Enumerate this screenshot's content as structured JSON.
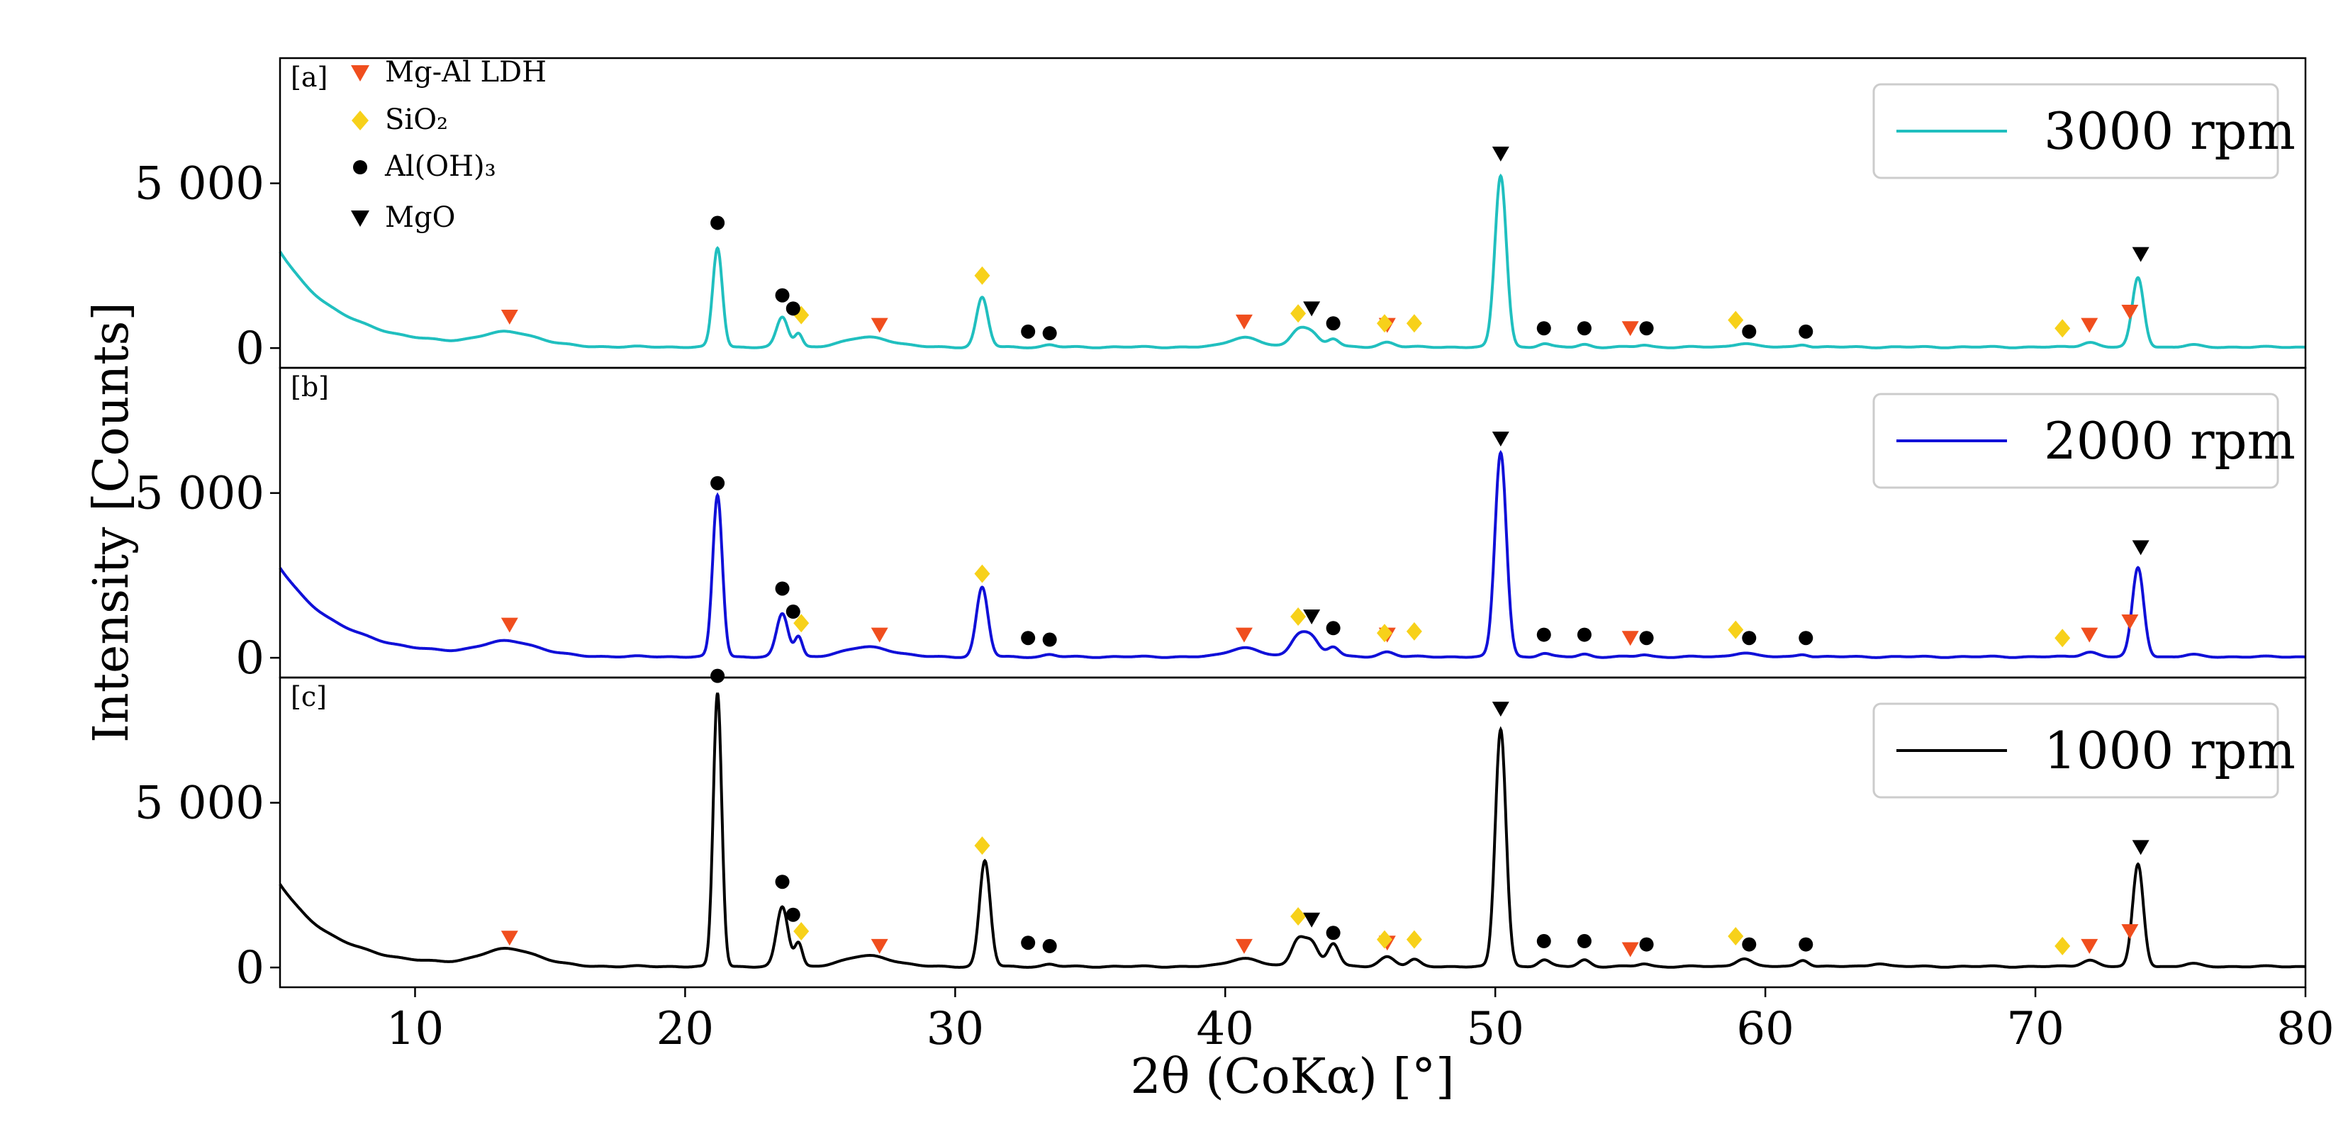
{
  "chart_data": {
    "type": "line",
    "xlabel": "2θ (CoKα) [°]",
    "ylabel": "Intensity [Counts]",
    "xlim": [
      5,
      80
    ],
    "x_ticks": [
      10,
      20,
      30,
      40,
      50,
      60,
      70,
      80
    ],
    "ylim": [
      -600,
      8800
    ],
    "y_ticks": [
      0,
      5000
    ],
    "y_tick_labels": [
      "0",
      "5 000"
    ],
    "marker_legend": [
      {
        "key": "ldh",
        "label": "Mg-Al LDH",
        "shape": "triangle-down",
        "color": "#f04e1e"
      },
      {
        "key": "sio2",
        "label": "SiO₂",
        "shape": "diamond",
        "color": "#f7d11a"
      },
      {
        "key": "aloh3",
        "label": "Al(OH)₃",
        "shape": "circle",
        "color": "#000000"
      },
      {
        "key": "mgo",
        "label": "MgO",
        "shape": "triangle-down",
        "color": "#000000"
      }
    ],
    "panels": [
      {
        "tag": "[a]",
        "legend": "3000 rpm",
        "color": "#20bfbf",
        "peaks": [
          [
            13.5,
            400,
            1.5
          ],
          [
            21.2,
            3000,
            0.25
          ],
          [
            23.6,
            900,
            0.3
          ],
          [
            24.2,
            400,
            0.2
          ],
          [
            26.8,
            300,
            1.2
          ],
          [
            31.0,
            1500,
            0.3
          ],
          [
            33.5,
            60,
            0.3
          ],
          [
            40.7,
            300,
            0.8
          ],
          [
            42.7,
            500,
            0.4
          ],
          [
            43.2,
            400,
            0.4
          ],
          [
            44.0,
            250,
            0.3
          ],
          [
            46.0,
            150,
            0.4
          ],
          [
            50.2,
            5200,
            0.3
          ],
          [
            51.8,
            100,
            0.3
          ],
          [
            53.3,
            80,
            0.3
          ],
          [
            55.5,
            60,
            0.3
          ],
          [
            59.2,
            120,
            0.5
          ],
          [
            61.4,
            80,
            0.3
          ],
          [
            72.0,
            150,
            0.4
          ],
          [
            73.8,
            2100,
            0.3
          ],
          [
            75.8,
            60,
            0.4
          ]
        ],
        "background": {
          "start": 2900,
          "decay": 2.2,
          "base": 30
        },
        "markers": {
          "ldh": [
            [
              13.5,
              950
            ],
            [
              27.2,
              700
            ],
            [
              40.7,
              800
            ],
            [
              46.0,
              700
            ],
            [
              55.0,
              600
            ],
            [
              72.0,
              700
            ],
            [
              73.5,
              1100
            ]
          ],
          "sio2": [
            [
              24.3,
              1000
            ],
            [
              31.0,
              2200
            ],
            [
              42.7,
              1050
            ],
            [
              45.9,
              750
            ],
            [
              47.0,
              750
            ],
            [
              58.9,
              850
            ],
            [
              71.0,
              600
            ]
          ],
          "aloh3": [
            [
              21.2,
              3800
            ],
            [
              23.6,
              1600
            ],
            [
              24.0,
              1200
            ],
            [
              32.7,
              500
            ],
            [
              33.5,
              450
            ],
            [
              44.0,
              750
            ],
            [
              51.8,
              600
            ],
            [
              53.3,
              600
            ],
            [
              55.6,
              600
            ],
            [
              59.4,
              500
            ],
            [
              61.5,
              500
            ]
          ],
          "mgo": [
            [
              43.2,
              1200
            ],
            [
              50.2,
              5900
            ],
            [
              73.9,
              2850
            ]
          ]
        }
      },
      {
        "tag": "[b]",
        "legend": "2000 rpm",
        "color": "#1010d8",
        "peaks": [
          [
            13.5,
            420,
            1.5
          ],
          [
            21.2,
            4900,
            0.25
          ],
          [
            23.6,
            1300,
            0.3
          ],
          [
            24.2,
            600,
            0.2
          ],
          [
            26.8,
            300,
            1.2
          ],
          [
            31.0,
            2100,
            0.3
          ],
          [
            33.5,
            60,
            0.3
          ],
          [
            40.7,
            280,
            0.8
          ],
          [
            42.7,
            600,
            0.4
          ],
          [
            43.2,
            550,
            0.4
          ],
          [
            44.0,
            300,
            0.3
          ],
          [
            46.0,
            150,
            0.4
          ],
          [
            50.2,
            6200,
            0.3
          ],
          [
            51.8,
            100,
            0.3
          ],
          [
            53.3,
            80,
            0.3
          ],
          [
            55.5,
            60,
            0.3
          ],
          [
            59.2,
            130,
            0.5
          ],
          [
            61.4,
            80,
            0.3
          ],
          [
            72.0,
            150,
            0.4
          ],
          [
            73.8,
            2700,
            0.3
          ],
          [
            75.8,
            60,
            0.4
          ]
        ],
        "background": {
          "start": 2700,
          "decay": 2.2,
          "base": 30
        },
        "markers": {
          "ldh": [
            [
              13.5,
              1000
            ],
            [
              27.2,
              700
            ],
            [
              40.7,
              700
            ],
            [
              46.0,
              700
            ],
            [
              55.0,
              600
            ],
            [
              72.0,
              700
            ],
            [
              73.5,
              1100
            ]
          ],
          "sio2": [
            [
              24.3,
              1050
            ],
            [
              31.0,
              2550
            ],
            [
              42.7,
              1250
            ],
            [
              45.9,
              750
            ],
            [
              47.0,
              800
            ],
            [
              58.9,
              850
            ],
            [
              71.0,
              600
            ]
          ],
          "aloh3": [
            [
              21.2,
              5300
            ],
            [
              23.6,
              2100
            ],
            [
              24.0,
              1400
            ],
            [
              32.7,
              600
            ],
            [
              33.5,
              550
            ],
            [
              44.0,
              900
            ],
            [
              51.8,
              700
            ],
            [
              53.3,
              700
            ],
            [
              55.6,
              600
            ],
            [
              59.4,
              600
            ],
            [
              61.5,
              600
            ]
          ],
          "mgo": [
            [
              43.2,
              1250
            ],
            [
              50.2,
              6650
            ],
            [
              73.9,
              3350
            ]
          ]
        }
      },
      {
        "tag": "[c]",
        "legend": "1000 rpm",
        "color": "#000000",
        "peaks": [
          [
            13.5,
            500,
            1.5
          ],
          [
            21.2,
            8300,
            0.22
          ],
          [
            23.6,
            1800,
            0.3
          ],
          [
            24.2,
            700,
            0.2
          ],
          [
            26.8,
            330,
            1.2
          ],
          [
            31.1,
            3200,
            0.28
          ],
          [
            33.5,
            60,
            0.3
          ],
          [
            40.7,
            250,
            0.8
          ],
          [
            42.7,
            800,
            0.35
          ],
          [
            43.2,
            700,
            0.35
          ],
          [
            44.0,
            700,
            0.3
          ],
          [
            46.0,
            300,
            0.4
          ],
          [
            47.0,
            200,
            0.3
          ],
          [
            50.2,
            7200,
            0.28
          ],
          [
            51.8,
            200,
            0.3
          ],
          [
            53.3,
            200,
            0.3
          ],
          [
            55.5,
            80,
            0.3
          ],
          [
            59.2,
            250,
            0.4
          ],
          [
            61.4,
            200,
            0.3
          ],
          [
            64.2,
            100,
            0.4
          ],
          [
            72.0,
            200,
            0.4
          ],
          [
            73.8,
            3100,
            0.28
          ],
          [
            75.8,
            80,
            0.4
          ]
        ],
        "background": {
          "start": 2500,
          "decay": 2.0,
          "base": 30
        },
        "markers": {
          "ldh": [
            [
              13.5,
              900
            ],
            [
              27.2,
              650
            ],
            [
              40.7,
              650
            ],
            [
              46.0,
              750
            ],
            [
              55.0,
              550
            ],
            [
              72.0,
              650
            ],
            [
              73.5,
              1100
            ]
          ],
          "sio2": [
            [
              24.3,
              1100
            ],
            [
              31.0,
              3700
            ],
            [
              42.7,
              1550
            ],
            [
              45.9,
              850
            ],
            [
              47.0,
              850
            ],
            [
              58.9,
              950
            ],
            [
              71.0,
              650
            ]
          ],
          "aloh3": [
            [
              21.2,
              8850
            ],
            [
              23.6,
              2600
            ],
            [
              24.0,
              1600
            ],
            [
              32.7,
              750
            ],
            [
              33.5,
              650
            ],
            [
              44.0,
              1050
            ],
            [
              51.8,
              800
            ],
            [
              53.3,
              800
            ],
            [
              55.6,
              700
            ],
            [
              59.4,
              700
            ],
            [
              61.5,
              700
            ]
          ],
          "mgo": [
            [
              43.2,
              1450
            ],
            [
              50.2,
              7850
            ],
            [
              73.9,
              3650
            ]
          ]
        }
      }
    ]
  }
}
